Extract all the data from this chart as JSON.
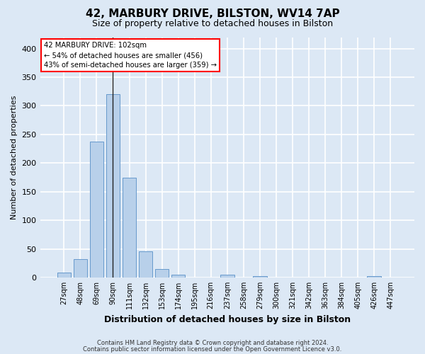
{
  "title_line1": "42, MARBURY DRIVE, BILSTON, WV14 7AP",
  "title_line2": "Size of property relative to detached houses in Bilston",
  "xlabel": "Distribution of detached houses by size in Bilston",
  "ylabel": "Number of detached properties",
  "categories": [
    "27sqm",
    "48sqm",
    "69sqm",
    "90sqm",
    "111sqm",
    "132sqm",
    "153sqm",
    "174sqm",
    "195sqm",
    "216sqm",
    "237sqm",
    "258sqm",
    "279sqm",
    "300sqm",
    "321sqm",
    "342sqm",
    "363sqm",
    "384sqm",
    "405sqm",
    "426sqm",
    "447sqm"
  ],
  "values": [
    8,
    32,
    237,
    320,
    175,
    46,
    15,
    5,
    0,
    0,
    5,
    0,
    3,
    0,
    0,
    0,
    0,
    0,
    0,
    3,
    0
  ],
  "bar_color": "#b8d0ea",
  "bar_edge_color": "#6699cc",
  "subject_bar_index": 3,
  "subject_bar_color": "#6699cc",
  "annotation_line1": "42 MARBURY DRIVE: 102sqm",
  "annotation_line2": "← 54% of detached houses are smaller (456)",
  "annotation_line3": "43% of semi-detached houses are larger (359) →",
  "ylim": [
    0,
    420
  ],
  "yticks": [
    0,
    50,
    100,
    150,
    200,
    250,
    300,
    350,
    400
  ],
  "background_color": "#dce8f5",
  "plot_bg_color": "#dce8f5",
  "grid_color": "#ffffff",
  "footer_line1": "Contains HM Land Registry data © Crown copyright and database right 2024.",
  "footer_line2": "Contains public sector information licensed under the Open Government Licence v3.0."
}
